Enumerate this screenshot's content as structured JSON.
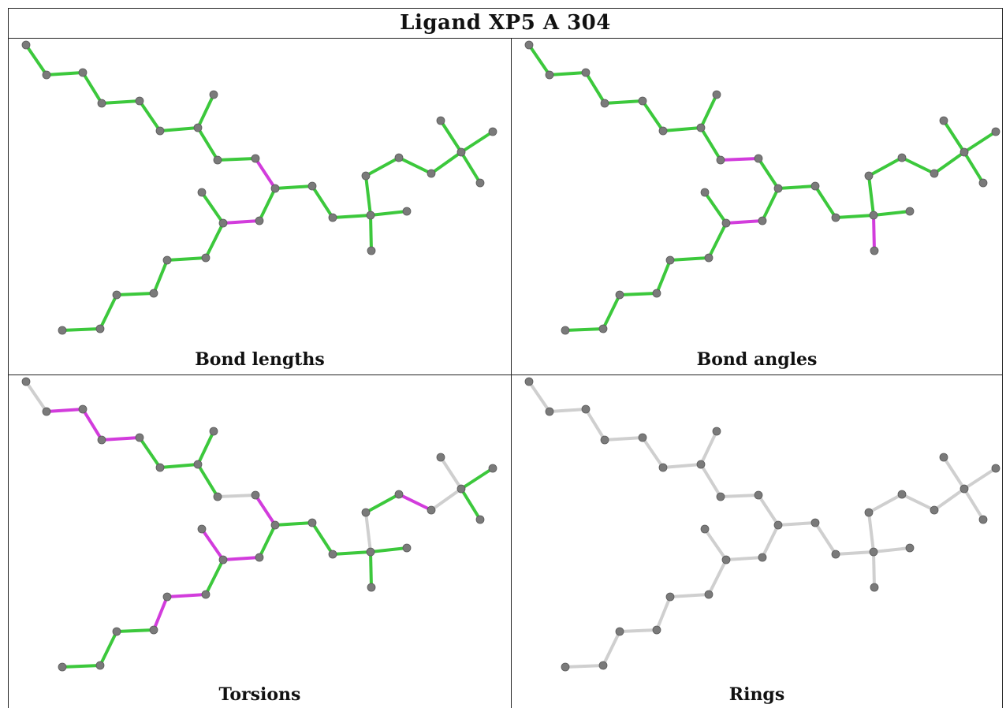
{
  "title": "Ligand XP5 A 304",
  "panels": [
    {
      "id": "bond-lengths",
      "caption": "Bond lengths",
      "ref": 0,
      "magenta_bonds": [
        [
          9,
          10
        ],
        [
          14,
          16
        ],
        [
          11,
          12
        ]
      ],
      "gray_bonds": []
    },
    {
      "id": "bond-angles",
      "caption": "Bond angles",
      "ref": 1,
      "magenta_bonds": [
        [
          8,
          9
        ],
        [
          7,
          8
        ],
        [
          11,
          12
        ],
        [
          14,
          16
        ],
        [
          16,
          19
        ],
        [
          15,
          19
        ],
        [
          19,
          20
        ]
      ],
      "gray_bonds": []
    },
    {
      "id": "torsions",
      "caption": "Torsions",
      "ref": 2,
      "magenta_bonds": [
        [
          1,
          2
        ],
        [
          2,
          3
        ],
        [
          3,
          4
        ],
        [
          9,
          10
        ],
        [
          11,
          12
        ],
        [
          14,
          16
        ],
        [
          19,
          20
        ],
        [
          20,
          21
        ],
        [
          12,
          13
        ],
        [
          13,
          26
        ],
        [
          26,
          27
        ],
        [
          27,
          28
        ]
      ],
      "gray_bonds": [
        [
          0,
          1
        ],
        [
          8,
          9
        ],
        [
          17,
          18
        ],
        [
          18,
          16
        ],
        [
          21,
          22
        ],
        [
          22,
          23
        ],
        [
          13,
          14
        ],
        [
          24,
          25
        ],
        [
          26,
          29
        ],
        [
          26,
          30
        ],
        [
          28,
          31
        ],
        [
          28,
          32
        ],
        [
          28,
          33
        ]
      ]
    },
    {
      "id": "rings",
      "caption": "Rings",
      "ref": 3,
      "magenta_bonds": [],
      "gray_bonds": "all"
    }
  ],
  "colors": {
    "green": "#3cc83c",
    "magenta": "#d23cdc",
    "gray_bond": "#cfcfcf",
    "atom": "#7a7a7a"
  }
}
